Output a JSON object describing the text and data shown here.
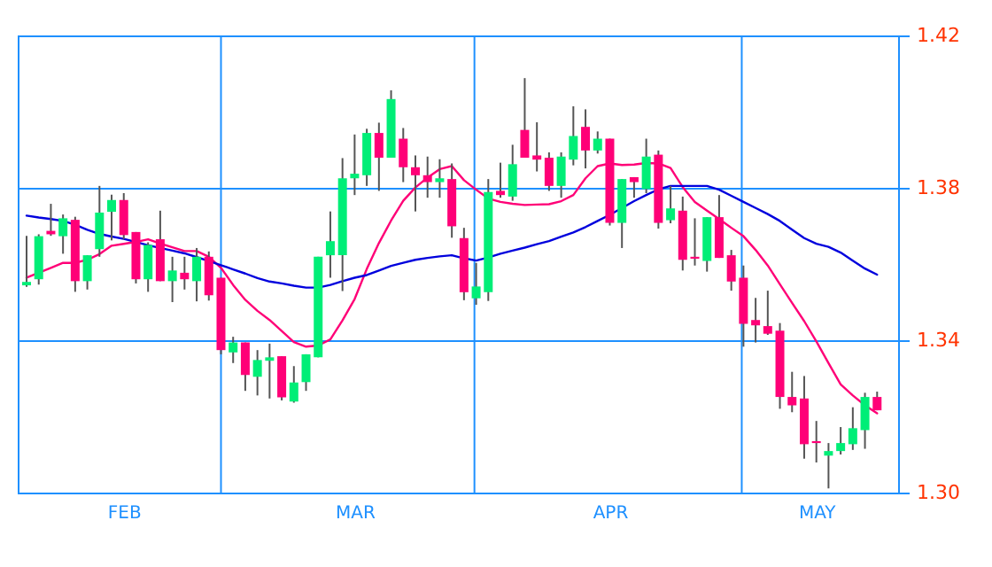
{
  "chart_data": {
    "type": "candlestick",
    "categories": [
      null,
      null,
      null,
      null,
      null,
      null,
      null,
      null,
      "FEB",
      null,
      null,
      null,
      null,
      null,
      null,
      null,
      null,
      null,
      null,
      null,
      null,
      null,
      null,
      null,
      null,
      null,
      null,
      "MAR",
      null,
      null,
      null,
      null,
      null,
      null,
      null,
      null,
      null,
      null,
      null,
      null,
      null,
      null,
      null,
      null,
      null,
      null,
      null,
      null,
      "APR",
      null,
      null,
      null,
      null,
      null,
      null,
      null,
      null,
      null,
      null,
      null,
      null,
      null,
      null,
      null,
      null,
      "MAY",
      null,
      null,
      null,
      null,
      null
    ],
    "ohlc": [
      [
        1.3544,
        1.3674,
        1.354,
        1.3553
      ],
      [
        1.356,
        1.3678,
        1.3546,
        1.3673
      ],
      [
        1.3687,
        1.3758,
        1.3674,
        1.3678
      ],
      [
        1.3673,
        1.373,
        1.3627,
        1.372
      ],
      [
        1.3716,
        1.3724,
        1.3527,
        1.3555
      ],
      [
        1.3555,
        1.3623,
        1.3533,
        1.3623
      ],
      [
        1.3639,
        1.3805,
        1.3619,
        1.3735
      ],
      [
        1.3737,
        1.3782,
        1.3662,
        1.3768
      ],
      [
        1.3768,
        1.3786,
        1.3665,
        1.3676
      ],
      [
        1.3684,
        1.3684,
        1.3549,
        1.356
      ],
      [
        1.356,
        1.3657,
        1.3527,
        1.365
      ],
      [
        1.3665,
        1.374,
        1.3555,
        1.3555
      ],
      [
        1.3555,
        1.3619,
        1.35,
        1.3583
      ],
      [
        1.3577,
        1.3619,
        1.3533,
        1.356
      ],
      [
        1.3555,
        1.3642,
        1.3502,
        1.3619
      ],
      [
        1.3619,
        1.3633,
        1.3504,
        1.3518
      ],
      [
        1.3564,
        1.3564,
        1.3363,
        1.3374
      ],
      [
        1.3368,
        1.3409,
        1.334,
        1.3394
      ],
      [
        1.3394,
        1.3394,
        1.3267,
        1.3309
      ],
      [
        1.3304,
        1.3374,
        1.3255,
        1.3348
      ],
      [
        1.3346,
        1.3391,
        1.3247,
        1.3355
      ],
      [
        1.3358,
        1.3358,
        1.3242,
        1.325
      ],
      [
        1.3239,
        1.3332,
        1.3236,
        1.3289
      ],
      [
        1.329,
        1.3363,
        1.3267,
        1.3363
      ],
      [
        1.3355,
        1.3619,
        1.3355,
        1.3619
      ],
      [
        1.3623,
        1.3738,
        1.3564,
        1.366
      ],
      [
        1.3623,
        1.3878,
        1.3529,
        1.3825
      ],
      [
        1.3825,
        1.394,
        1.3781,
        1.3837
      ],
      [
        1.3833,
        1.3955,
        1.3805,
        1.3944
      ],
      [
        1.3944,
        1.3971,
        1.3792,
        1.3879
      ],
      [
        1.3879,
        1.4056,
        1.3879,
        1.4033
      ],
      [
        1.3929,
        1.3957,
        1.3815,
        1.3854
      ],
      [
        1.3854,
        1.3885,
        1.3738,
        1.3833
      ],
      [
        1.3833,
        1.3882,
        1.3774,
        1.3815
      ],
      [
        1.3815,
        1.3875,
        1.3774,
        1.3825
      ],
      [
        1.3823,
        1.3864,
        1.3669,
        1.3699
      ],
      [
        1.3668,
        1.3695,
        1.3505,
        1.3526
      ],
      [
        1.351,
        1.3603,
        1.3493,
        1.3541
      ],
      [
        1.3526,
        1.3823,
        1.3503,
        1.3789
      ],
      [
        1.3792,
        1.3866,
        1.3774,
        1.3781
      ],
      [
        1.3777,
        1.3913,
        1.3766,
        1.3862
      ],
      [
        1.3952,
        1.4088,
        1.3879,
        1.3879
      ],
      [
        1.3885,
        1.3972,
        1.3843,
        1.3874
      ],
      [
        1.3879,
        1.3893,
        1.3792,
        1.3805
      ],
      [
        1.3805,
        1.3893,
        1.3774,
        1.3882
      ],
      [
        1.3874,
        1.4014,
        1.3859,
        1.3936
      ],
      [
        1.396,
        1.4006,
        1.3851,
        1.3898
      ],
      [
        1.3898,
        1.3948,
        1.389,
        1.3929
      ],
      [
        1.3929,
        1.3929,
        1.3701,
        1.3708
      ],
      [
        1.3708,
        1.3823,
        1.3642,
        1.3823
      ],
      [
        1.3828,
        1.3828,
        1.3774,
        1.3815
      ],
      [
        1.3797,
        1.3929,
        1.3786,
        1.3882
      ],
      [
        1.3887,
        1.3898,
        1.3693,
        1.3708
      ],
      [
        1.3715,
        1.3805,
        1.3707,
        1.3746
      ],
      [
        1.374,
        1.3777,
        1.3583,
        1.3611
      ],
      [
        1.3619,
        1.372,
        1.3596,
        1.3614
      ],
      [
        1.3608,
        1.3723,
        1.358,
        1.3723
      ],
      [
        1.3723,
        1.3781,
        1.3616,
        1.3616
      ],
      [
        1.3623,
        1.3637,
        1.353,
        1.3554
      ],
      [
        1.3564,
        1.3596,
        1.3383,
        1.3443
      ],
      [
        1.3453,
        1.3511,
        1.3394,
        1.3439
      ],
      [
        1.3437,
        1.353,
        1.3414,
        1.3417
      ],
      [
        1.3425,
        1.3445,
        1.322,
        1.3251
      ],
      [
        1.3251,
        1.3317,
        1.3211,
        1.3229
      ],
      [
        1.3247,
        1.3306,
        1.3089,
        1.3127
      ],
      [
        1.3135,
        1.3188,
        1.3079,
        1.313
      ],
      [
        1.3097,
        1.313,
        1.3011,
        1.3109
      ],
      [
        1.3109,
        1.3172,
        1.31,
        1.313
      ],
      [
        1.3127,
        1.3224,
        1.3112,
        1.3169
      ],
      [
        1.3164,
        1.3262,
        1.3115,
        1.3251
      ],
      [
        1.3251,
        1.3265,
        1.3216,
        1.3216
      ]
    ],
    "colors": [
      "#00ee77",
      "#00ee77",
      "#ff0077",
      "#00ee77",
      "#ff0077",
      "#00ee77",
      "#00ee77",
      "#00ee77",
      "#ff0077",
      "#ff0077",
      "#00ee77",
      "#ff0077",
      "#00ee77",
      "#ff0077",
      "#00ee77",
      "#ff0077",
      "#ff0077",
      "#00ee77",
      "#ff0077",
      "#00ee77",
      "#00ee77",
      "#ff0077",
      "#00ee77",
      "#00ee77",
      "#00ee77",
      "#00ee77",
      "#00ee77",
      "#00ee77",
      "#00ee77",
      "#ff0077",
      "#00ee77",
      "#ff0077",
      "#ff0077",
      "#ff0077",
      "#00ee77",
      "#ff0077",
      "#ff0077",
      "#00ee77",
      "#00ee77",
      "#ff0077",
      "#00ee77",
      "#ff0077",
      "#ff0077",
      "#ff0077",
      "#00ee77",
      "#00ee77",
      "#ff0077",
      "#00ee77",
      "#ff0077",
      "#00ee77",
      "#ff0077",
      "#00ee77",
      "#ff0077",
      "#00ee77",
      "#ff0077",
      "#ff0077",
      "#00ee77",
      "#ff0077",
      "#ff0077",
      "#ff0077",
      "#ff0077",
      "#ff0077",
      "#ff0077",
      "#ff0077",
      "#ff0077",
      "#ff0077",
      "#00ee77",
      "#00ee77",
      "#00ee77",
      "#00ee77",
      "#ff0077"
    ],
    "series": [
      {
        "type": "line",
        "color": "#ff0077",
        "values": [
          1.3564,
          1.3577,
          1.359,
          1.3603,
          1.3603,
          1.3611,
          1.3626,
          1.3648,
          1.3653,
          1.3658,
          1.3665,
          1.3654,
          1.3644,
          1.3634,
          1.3634,
          1.3619,
          1.359,
          1.3545,
          1.3506,
          1.3477,
          1.3453,
          1.3424,
          1.3395,
          1.3383,
          1.3386,
          1.3402,
          1.3452,
          1.3508,
          1.3587,
          1.3655,
          1.3714,
          1.3766,
          1.3801,
          1.3827,
          1.3849,
          1.3857,
          1.382,
          1.3795,
          1.3772,
          1.3763,
          1.3758,
          1.3755,
          1.3756,
          1.3757,
          1.3765,
          1.3781,
          1.3825,
          1.3857,
          1.3864,
          1.386,
          1.3861,
          1.3865,
          1.3864,
          1.3852,
          1.3802,
          1.3763,
          1.374,
          1.3718,
          1.3695,
          1.3673,
          1.3637,
          1.3596,
          1.3547,
          1.3498,
          1.345,
          1.3397,
          1.334,
          1.3284,
          1.3255,
          1.3229,
          1.3208
        ]
      },
      {
        "type": "line",
        "color": "#0000dd",
        "values": [
          1.3727,
          1.3722,
          1.3718,
          1.3713,
          1.3703,
          1.369,
          1.3679,
          1.3672,
          1.3666,
          1.3658,
          1.3649,
          1.3642,
          1.3635,
          1.3628,
          1.3618,
          1.3608,
          1.3597,
          1.3586,
          1.3575,
          1.3563,
          1.3554,
          1.3549,
          1.3543,
          1.3538,
          1.3538,
          1.3545,
          1.3555,
          1.3564,
          1.3571,
          1.3583,
          1.3595,
          1.3603,
          1.3611,
          1.3616,
          1.362,
          1.3623,
          1.3615,
          1.3609,
          1.3617,
          1.3627,
          1.3635,
          1.3643,
          1.3652,
          1.366,
          1.3672,
          1.3683,
          1.3697,
          1.3713,
          1.3729,
          1.3747,
          1.3765,
          1.3781,
          1.3796,
          1.3805,
          1.3805,
          1.3805,
          1.3805,
          1.3795,
          1.3779,
          1.3763,
          1.3747,
          1.3731,
          1.3713,
          1.369,
          1.3668,
          1.3653,
          1.3645,
          1.363,
          1.3609,
          1.3588,
          1.3572
        ]
      }
    ],
    "ylim": [
      1.3,
      1.42
    ],
    "yticks": [
      {
        "value": 1.3,
        "label": "1.30"
      },
      {
        "value": 1.34,
        "label": "1.34"
      },
      {
        "value": 1.38,
        "label": "1.38"
      },
      {
        "value": 1.42,
        "label": "1.42"
      }
    ],
    "grid": "y"
  }
}
